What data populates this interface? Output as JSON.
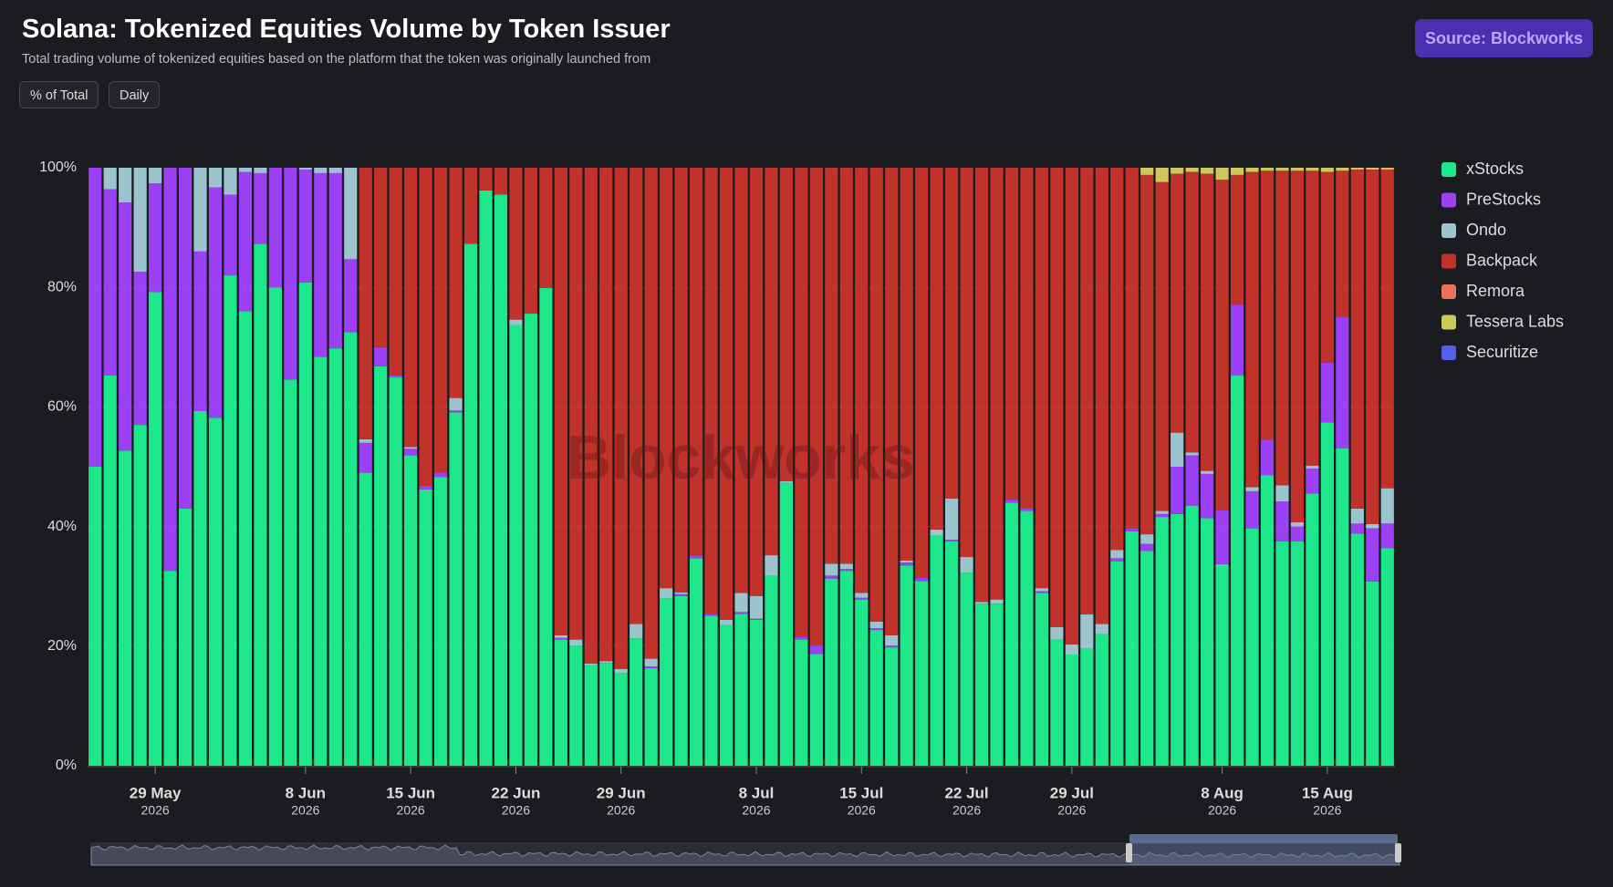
{
  "source": "Source: Blockworks",
  "controls": [
    "% of Total",
    "Daily"
  ],
  "watermark": "Blockworks",
  "chart_data": {
    "type": "stacked_bar_percent",
    "title": "Solana: Tokenized Equities Volume by Token Issuer",
    "subtitle": "Total trading volume of tokenized equities based on the platform that the token was originally launched from",
    "categories": [
      "2026-05-25",
      "2026-05-26",
      "2026-05-27",
      "2026-05-28",
      "2026-05-29",
      "2026-05-30",
      "2026-05-31",
      "2026-06-01",
      "2026-06-02",
      "2026-06-03",
      "2026-06-04",
      "2026-06-05",
      "2026-06-06",
      "2026-06-07",
      "2026-06-08",
      "2026-06-09",
      "2026-06-10",
      "2026-06-11",
      "2026-06-12",
      "2026-06-13",
      "2026-06-14",
      "2026-06-15",
      "2026-06-16",
      "2026-06-17",
      "2026-06-18",
      "2026-06-19",
      "2026-06-20",
      "2026-06-21",
      "2026-06-22",
      "2026-06-23",
      "2026-06-24",
      "2026-06-25",
      "2026-06-26",
      "2026-06-27",
      "2026-06-28",
      "2026-06-29",
      "2026-06-30",
      "2026-07-01",
      "2026-07-02",
      "2026-07-03",
      "2026-07-04",
      "2026-07-05",
      "2026-07-06",
      "2026-07-07",
      "2026-07-08",
      "2026-07-09",
      "2026-07-10",
      "2026-07-11",
      "2026-07-12",
      "2026-07-13",
      "2026-07-14",
      "2026-07-15",
      "2026-07-16",
      "2026-07-17",
      "2026-07-18",
      "2026-07-19",
      "2026-07-20",
      "2026-07-21",
      "2026-07-22",
      "2026-07-23",
      "2026-07-24",
      "2026-07-25",
      "2026-07-26",
      "2026-07-27",
      "2026-07-28",
      "2026-07-29",
      "2026-07-30",
      "2026-07-31",
      "2026-08-01",
      "2026-08-02",
      "2026-08-03",
      "2026-08-04",
      "2026-08-05",
      "2026-08-06",
      "2026-08-07",
      "2026-08-08",
      "2026-08-09",
      "2026-08-10",
      "2026-08-11",
      "2026-08-12",
      "2026-08-13",
      "2026-08-14",
      "2026-08-15",
      "2026-08-16",
      "2026-08-17",
      "2026-08-18",
      "2026-08-19"
    ],
    "series": [
      {
        "name": "xStocks",
        "color": "#1ce88b",
        "values": [
          50,
          65.3,
          52.7,
          57,
          79.2,
          32.6,
          43,
          59.3,
          58.2,
          82,
          76,
          87.3,
          80,
          64.6,
          80.8,
          68.4,
          69.8,
          72.5,
          49,
          66.8,
          65,
          51.9,
          46.2,
          48.3,
          59.1,
          87.3,
          96.2,
          95.5,
          73.7,
          75.6,
          79.9,
          21.1,
          20.1,
          16.8,
          17.2,
          15.5,
          21.3,
          16.3,
          28,
          28.4,
          34.7,
          25.1,
          23.5,
          25.4,
          24.4,
          31.8,
          47.3,
          21.1,
          18.7,
          31.3,
          32.6,
          27.8,
          22.7,
          19.8,
          33.5,
          30.9,
          38.5,
          37.5,
          32.3,
          27.1,
          27.1,
          44,
          42.6,
          28.9,
          21.1,
          18.6,
          19.6,
          22,
          34.2,
          39.2,
          35.9,
          41.6,
          42.1,
          43.5,
          41.4,
          33.7,
          65.3,
          39.7,
          48.6,
          37.5,
          37.5,
          45.5,
          57.4,
          53.1,
          38.8,
          30.8,
          36.4
        ]
      },
      {
        "name": "PreStocks",
        "color": "#9b40f5",
        "values": [
          50,
          31.1,
          41.5,
          25.6,
          18.2,
          67.4,
          57,
          26.7,
          38.5,
          13.5,
          23.3,
          11.8,
          20,
          35.4,
          18.9,
          30.7,
          29.3,
          12.2,
          5,
          3.2,
          0.3,
          1.1,
          0.6,
          0.7,
          0.3,
          0,
          0,
          0,
          0,
          0,
          0,
          0.3,
          0,
          0,
          0,
          0,
          0,
          0.3,
          0,
          0.3,
          0.5,
          0.3,
          0,
          0.3,
          0.2,
          0,
          0,
          0.5,
          1.4,
          0.5,
          0.3,
          0.3,
          0.3,
          0.3,
          0.5,
          0.5,
          0,
          0.3,
          0,
          0,
          0,
          0.5,
          0.5,
          0.3,
          0,
          0,
          0,
          0,
          0.5,
          0.5,
          1.2,
          0.5,
          7.9,
          8.4,
          7.4,
          9.1,
          11.8,
          6.2,
          5.9,
          6.7,
          2.5,
          4.2,
          10,
          22,
          1.7,
          8.9,
          4.1
        ]
      },
      {
        "name": "Ondo",
        "color": "#9cc4ce",
        "values": [
          0,
          3.6,
          5.8,
          17.4,
          2.6,
          0,
          0,
          14,
          3.3,
          4.5,
          0.7,
          0.9,
          0,
          0,
          0.3,
          0.9,
          0.9,
          15.3,
          0.6,
          0,
          0,
          0.3,
          0,
          0,
          2.1,
          0,
          0,
          0,
          0.9,
          0,
          0,
          0.4,
          1,
          0.3,
          0.3,
          0.7,
          2.4,
          1.3,
          1.7,
          0.3,
          0,
          0,
          0.9,
          3.2,
          3.8,
          3.4,
          0.3,
          0,
          0,
          2,
          0.9,
          0.8,
          1.1,
          1.7,
          0.3,
          0,
          1,
          6.9,
          2.6,
          0.3,
          0.7,
          0,
          0,
          0.5,
          2.1,
          1.7,
          5.7,
          1.7,
          1.4,
          0,
          1.6,
          0.5,
          5.7,
          0.5,
          0.5,
          0,
          0,
          0.7,
          0,
          2.7,
          0.7,
          0.5,
          0,
          0,
          2.5,
          0.7,
          5.9
        ]
      },
      {
        "name": "Backpack",
        "color": "#c0322a",
        "values": [
          0,
          0,
          0,
          0,
          0,
          0,
          0,
          0,
          0,
          0,
          0,
          0,
          0,
          0,
          0,
          0,
          0,
          0,
          45.4,
          30,
          34.7,
          46.7,
          53.2,
          51,
          38.5,
          12.7,
          3.8,
          4.5,
          25.4,
          24.4,
          20.1,
          78.2,
          78.9,
          82.9,
          82.5,
          83.8,
          76.3,
          82.1,
          70.3,
          71,
          64.8,
          74.6,
          75.6,
          71.1,
          71.6,
          64.8,
          52.4,
          78.4,
          79.9,
          66.2,
          66.2,
          71.1,
          75.9,
          78.2,
          65.7,
          68.6,
          60.5,
          55.3,
          65.1,
          72.6,
          72.2,
          55.5,
          56.9,
          70.3,
          76.8,
          79.7,
          74.7,
          76.3,
          63.9,
          60.3,
          60.1,
          55,
          43.3,
          46.9,
          49.7,
          55.2,
          21.7,
          52.7,
          45,
          52.6,
          58.8,
          49.3,
          31.9,
          24.4,
          56.7,
          59.3,
          53.3
        ]
      },
      {
        "name": "Remora",
        "color": "#e8735a",
        "values": [
          0,
          0,
          0,
          0,
          0,
          0,
          0,
          0,
          0,
          0,
          0,
          0,
          0,
          0,
          0,
          0,
          0,
          0,
          0,
          0,
          0,
          0,
          0,
          0,
          0,
          0,
          0,
          0,
          0,
          0,
          0,
          0,
          0,
          0,
          0,
          0,
          0,
          0,
          0,
          0,
          0,
          0,
          0,
          0,
          0,
          0,
          0,
          0,
          0,
          0,
          0,
          0,
          0,
          0,
          0,
          0,
          0,
          0,
          0,
          0,
          0,
          0,
          0,
          0,
          0,
          0,
          0,
          0,
          0,
          0,
          0,
          0,
          0,
          0,
          0,
          0,
          0,
          0,
          0,
          0,
          0,
          0,
          0,
          0,
          0,
          0,
          0
        ]
      },
      {
        "name": "Tessera Labs",
        "color": "#cdc85a",
        "values": [
          0,
          0,
          0,
          0,
          0,
          0,
          0,
          0,
          0,
          0,
          0,
          0,
          0,
          0,
          0,
          0,
          0,
          0,
          0,
          0,
          0,
          0,
          0,
          0,
          0,
          0,
          0,
          0,
          0,
          0,
          0,
          0,
          0,
          0,
          0,
          0,
          0,
          0,
          0,
          0,
          0,
          0,
          0,
          0,
          0,
          0,
          0,
          0,
          0,
          0,
          0,
          0,
          0,
          0,
          0,
          0,
          0,
          0,
          0,
          0,
          0,
          0,
          0,
          0,
          0,
          0,
          0,
          0,
          0,
          0,
          1.2,
          2.4,
          1,
          0.7,
          1,
          2,
          1.2,
          0.7,
          0.5,
          0.5,
          0.5,
          0.5,
          0.7,
          0.5,
          0.3,
          0.3,
          0.3
        ]
      },
      {
        "name": "Securitize",
        "color": "#5460f0",
        "values": [
          0,
          0,
          0,
          0,
          0,
          0,
          0,
          0,
          0,
          0,
          0,
          0,
          0,
          0,
          0,
          0,
          0,
          0,
          0,
          0,
          0,
          0,
          0,
          0,
          0,
          0,
          0,
          0,
          0,
          0,
          0,
          0,
          0,
          0,
          0,
          0,
          0,
          0,
          0,
          0,
          0,
          0,
          0,
          0,
          0,
          0,
          0,
          0,
          0,
          0,
          0,
          0,
          0,
          0,
          0,
          0,
          0,
          0,
          0,
          0,
          0,
          0,
          0,
          0,
          0,
          0,
          0,
          0,
          0,
          0,
          0,
          0,
          0,
          0,
          0,
          0,
          0,
          0,
          0,
          0,
          0,
          0,
          0,
          0,
          0,
          0,
          0
        ]
      }
    ],
    "ylim": [
      0,
      100
    ],
    "yticks": [
      {
        "value": 0,
        "label": "0%"
      },
      {
        "value": 20,
        "label": "20%"
      },
      {
        "value": 40,
        "label": "40%"
      },
      {
        "value": 60,
        "label": "60%"
      },
      {
        "value": 80,
        "label": "80%"
      },
      {
        "value": 100,
        "label": "100%"
      }
    ],
    "xticks": [
      {
        "value": "2026-05-29",
        "label": "29 May",
        "year": "2026"
      },
      {
        "value": "2026-06-08",
        "label": "8 Jun",
        "year": "2026"
      },
      {
        "value": "2026-06-15",
        "label": "15 Jun",
        "year": "2026"
      },
      {
        "value": "2026-06-22",
        "label": "22 Jun",
        "year": "2026"
      },
      {
        "value": "2026-06-29",
        "label": "29 Jun",
        "year": "2026"
      },
      {
        "value": "2026-07-08",
        "label": "8 Jul",
        "year": "2026"
      },
      {
        "value": "2026-07-15",
        "label": "15 Jul",
        "year": "2026"
      },
      {
        "value": "2026-07-22",
        "label": "22 Jul",
        "year": "2026"
      },
      {
        "value": "2026-07-29",
        "label": "29 Jul",
        "year": "2026"
      },
      {
        "value": "2026-08-08",
        "label": "8 Aug",
        "year": "2026"
      },
      {
        "value": "2026-08-15",
        "label": "15 Aug",
        "year": "2026"
      }
    ],
    "grid": true,
    "legend": "right"
  }
}
